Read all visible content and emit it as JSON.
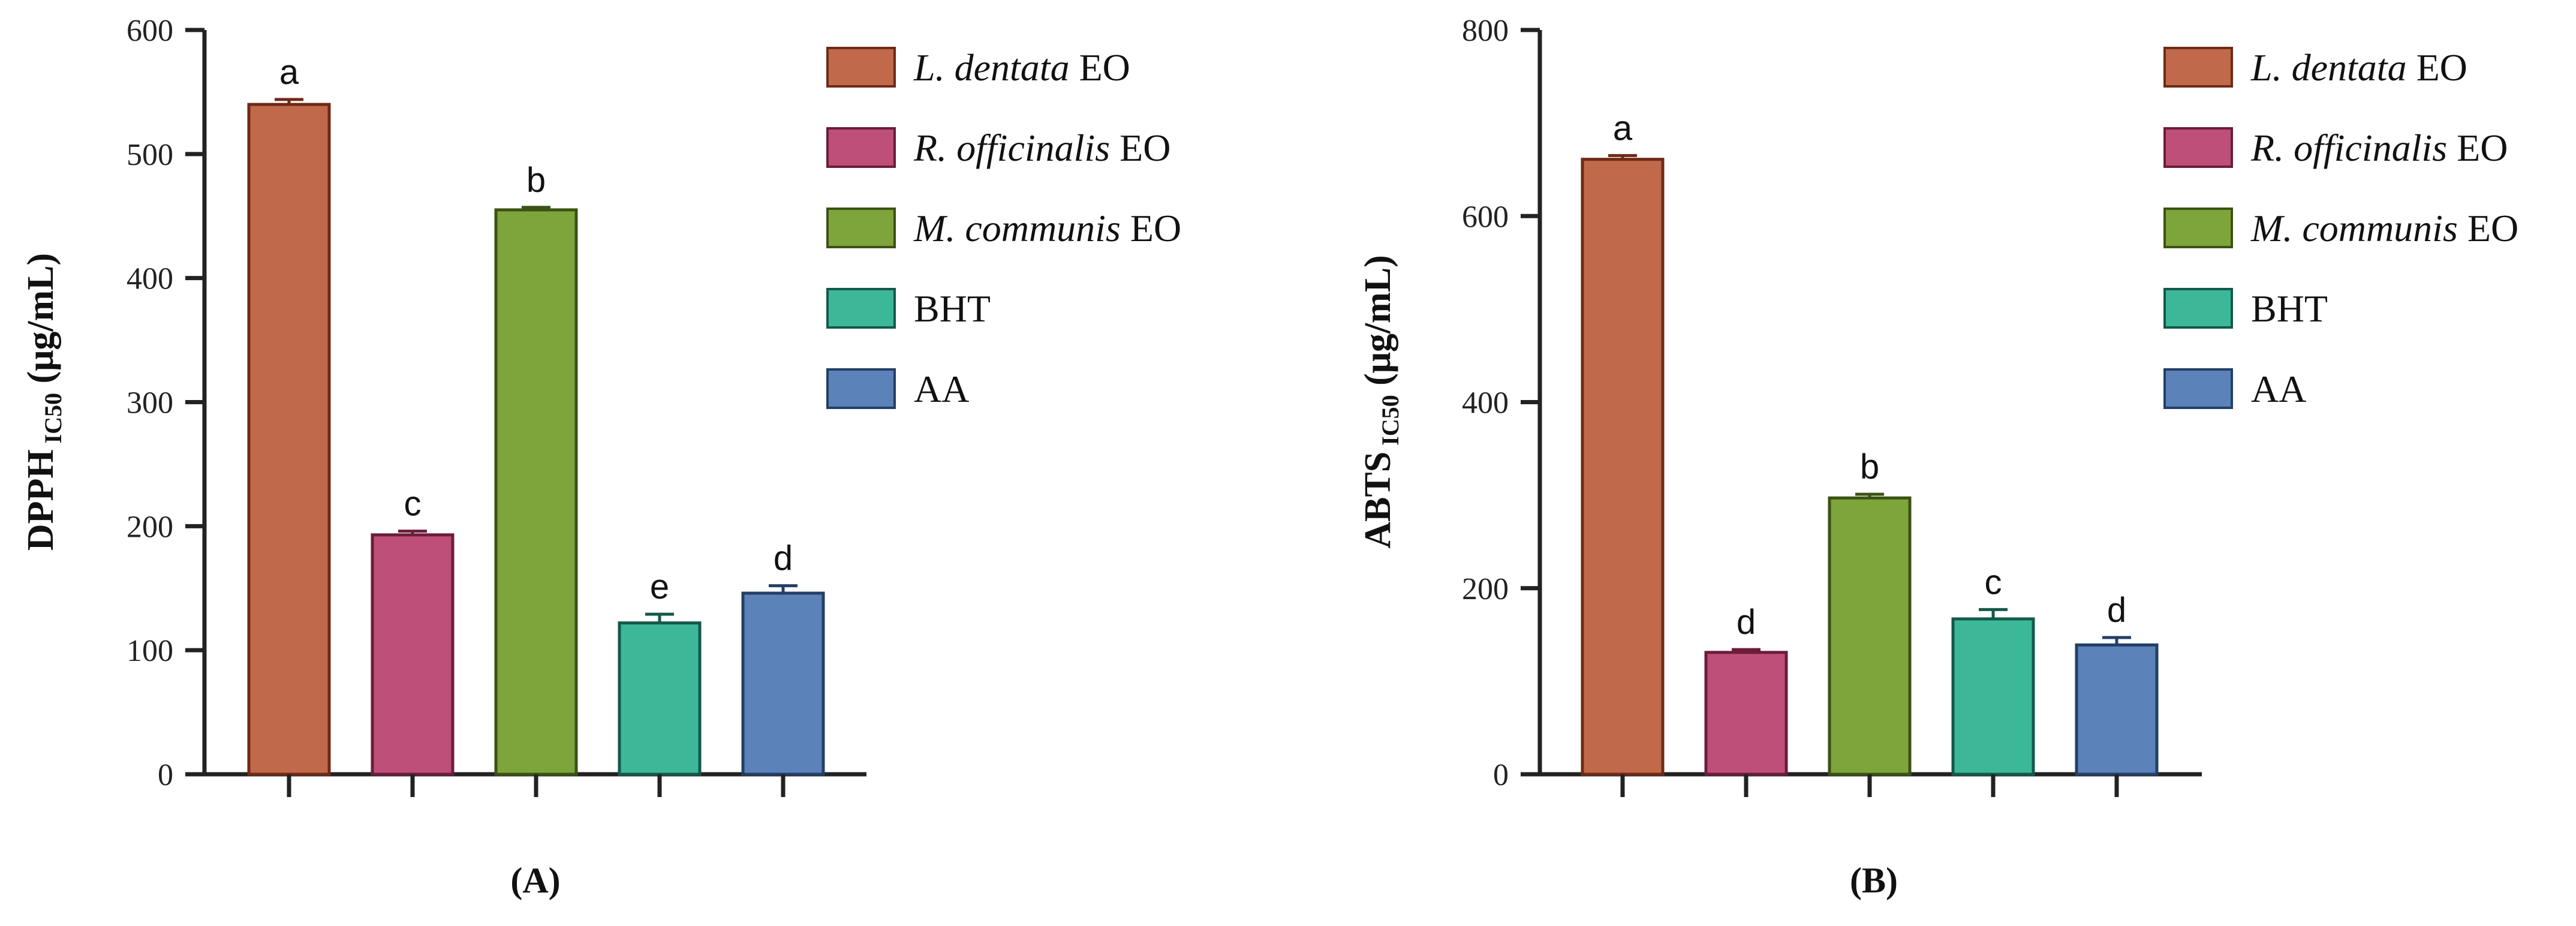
{
  "chart_data": [
    {
      "type": "bar",
      "panel_label": "(A)",
      "ylabel": {
        "main": "DPPH",
        "sub": "IC50",
        "unit": "(μg/mL)"
      },
      "ylim": [
        0,
        600
      ],
      "yticks": [
        0,
        100,
        200,
        300,
        400,
        500,
        600
      ],
      "categories": [
        "L. dentata EO",
        "R. officinalis EO",
        "M. communis EO",
        "BHT",
        "AA"
      ],
      "values": [
        540,
        193,
        455,
        122,
        146
      ],
      "errors": [
        4,
        3,
        2,
        7,
        6
      ],
      "letters": [
        "a",
        "c",
        "b",
        "e",
        "d"
      ],
      "legend_position": "right"
    },
    {
      "type": "bar",
      "panel_label": "(B)",
      "ylabel": {
        "main": "ABTS",
        "sub": "IC50",
        "unit": "(μg/mL)"
      },
      "ylim": [
        0,
        800
      ],
      "yticks": [
        0,
        200,
        400,
        600,
        800
      ],
      "categories": [
        "L. dentata EO",
        "R. officinalis EO",
        "M. communis EO",
        "BHT",
        "AA"
      ],
      "values": [
        661,
        131,
        297,
        167,
        139
      ],
      "errors": [
        4,
        3,
        4,
        10,
        8
      ],
      "letters": [
        "a",
        "d",
        "b",
        "c",
        "d"
      ],
      "legend_position": "right"
    }
  ],
  "legend": [
    {
      "italic": "L. dentata",
      "rest": " EO",
      "color": "#c0694b",
      "stroke": "#6e2a16"
    },
    {
      "italic": "R. officinalis",
      "rest": " EO",
      "color": "#bd4f78",
      "stroke": "#6b1d3a"
    },
    {
      "italic": "M. communis",
      "rest": " EO",
      "color": "#7ea53b",
      "stroke": "#3b5214"
    },
    {
      "italic": "",
      "rest": "BHT",
      "color": "#3cb898",
      "stroke": "#14594a"
    },
    {
      "italic": "",
      "rest": "AA",
      "color": "#5b82b9",
      "stroke": "#233f66"
    }
  ]
}
